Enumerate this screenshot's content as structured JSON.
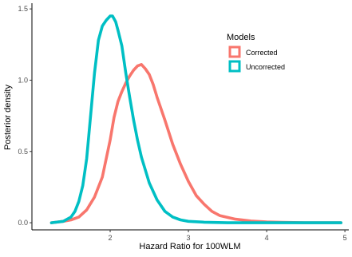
{
  "chart_data": {
    "type": "line",
    "xlabel": "Hazard Ratio for 100WLM",
    "ylabel": "Posterior density",
    "xlim": [
      1.0,
      5.05
    ],
    "ylim": [
      -0.05,
      1.54
    ],
    "x_ticks": [
      2,
      3,
      4,
      5
    ],
    "x_tick_labels": [
      "2",
      "3",
      "4",
      "5"
    ],
    "y_ticks": [
      0.0,
      0.5,
      1.0,
      1.5
    ],
    "y_tick_labels": [
      "0.0",
      "0.5",
      "1.0",
      "1.5"
    ],
    "grid": false,
    "legend": {
      "title": "Models",
      "position": "top-right-inside",
      "entries": [
        "Corrected",
        "Uncorrected"
      ]
    },
    "series": [
      {
        "name": "Corrected",
        "color": "#F8766D",
        "x": [
          1.25,
          1.4,
          1.5,
          1.6,
          1.7,
          1.8,
          1.9,
          2.0,
          2.05,
          2.1,
          2.15,
          2.2,
          2.25,
          2.3,
          2.35,
          2.4,
          2.45,
          2.5,
          2.55,
          2.6,
          2.7,
          2.8,
          2.9,
          3.0,
          3.1,
          3.2,
          3.3,
          3.4,
          3.6,
          3.8,
          4.0,
          4.2,
          4.5,
          4.95
        ],
        "y": [
          0.0,
          0.01,
          0.02,
          0.04,
          0.09,
          0.18,
          0.32,
          0.58,
          0.74,
          0.85,
          0.92,
          0.98,
          1.03,
          1.07,
          1.1,
          1.11,
          1.08,
          1.04,
          0.97,
          0.88,
          0.72,
          0.55,
          0.41,
          0.29,
          0.19,
          0.13,
          0.08,
          0.05,
          0.025,
          0.012,
          0.006,
          0.003,
          0.0,
          0.0
        ]
      },
      {
        "name": "Uncorrected",
        "color": "#00BFC4",
        "x": [
          1.25,
          1.4,
          1.5,
          1.55,
          1.6,
          1.65,
          1.7,
          1.75,
          1.8,
          1.85,
          1.9,
          1.95,
          2.0,
          2.03,
          2.07,
          2.1,
          2.15,
          2.2,
          2.25,
          2.3,
          2.35,
          2.4,
          2.5,
          2.6,
          2.7,
          2.8,
          2.9,
          3.0,
          3.2,
          3.5,
          4.0,
          4.95
        ],
        "y": [
          0.0,
          0.01,
          0.04,
          0.08,
          0.15,
          0.26,
          0.45,
          0.75,
          1.05,
          1.28,
          1.38,
          1.42,
          1.45,
          1.45,
          1.41,
          1.35,
          1.24,
          1.05,
          0.88,
          0.72,
          0.58,
          0.46,
          0.28,
          0.16,
          0.08,
          0.04,
          0.02,
          0.01,
          0.004,
          0.0,
          0.0,
          0.0
        ]
      }
    ]
  }
}
